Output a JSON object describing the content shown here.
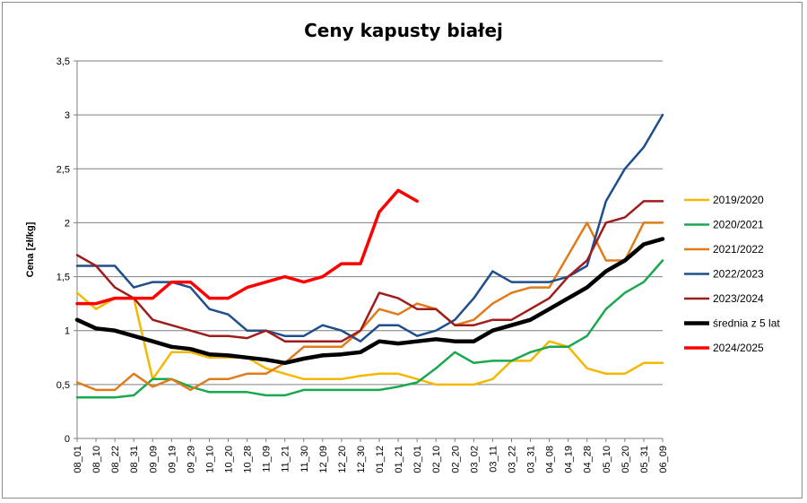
{
  "chart_data": {
    "type": "line",
    "title": "Ceny kapusty białej",
    "ylabel": "Cena [zł/kg]",
    "xlabel": "",
    "ylim": [
      0,
      3.5
    ],
    "y_ticks": [
      "0",
      "0,5",
      "1",
      "1,5",
      "2",
      "2,5",
      "3",
      "3,5"
    ],
    "categories": [
      "08_01",
      "08_10",
      "08_22",
      "08_31",
      "09_09",
      "09_19",
      "09_29",
      "10_10",
      "10_20",
      "10_28",
      "11_09",
      "11_21",
      "11_30",
      "12_09",
      "12_20",
      "12_30",
      "01_12",
      "01_21",
      "02_01",
      "02_10",
      "02_20",
      "03_02",
      "03_11",
      "03_22",
      "03_31",
      "04_08",
      "04_19",
      "04_28",
      "05_10",
      "05_20",
      "05_31",
      "06_09"
    ],
    "grid": "horizontal",
    "legend_position": "right",
    "series": [
      {
        "name": "2019/2020",
        "color": "#f5b800",
        "width": 2.5,
        "values": [
          1.35,
          1.2,
          1.3,
          1.3,
          0.55,
          0.8,
          0.8,
          0.75,
          0.75,
          0.75,
          0.65,
          0.6,
          0.55,
          0.55,
          0.55,
          0.58,
          0.6,
          0.6,
          0.55,
          0.5,
          0.5,
          0.5,
          0.55,
          0.72,
          0.72,
          0.9,
          0.85,
          0.65,
          0.6,
          0.6,
          0.7,
          0.7
        ]
      },
      {
        "name": "2020/2021",
        "color": "#1aa84f",
        "width": 2.5,
        "values": [
          0.38,
          0.38,
          0.38,
          0.4,
          0.55,
          0.55,
          0.48,
          0.43,
          0.43,
          0.43,
          0.4,
          0.4,
          0.45,
          0.45,
          0.45,
          0.45,
          0.45,
          0.48,
          0.52,
          0.65,
          0.8,
          0.7,
          0.72,
          0.72,
          0.8,
          0.85,
          0.85,
          0.95,
          1.2,
          1.35,
          1.45,
          1.65
        ]
      },
      {
        "name": "2021/2022",
        "color": "#e07b1a",
        "width": 2.5,
        "values": [
          0.52,
          0.45,
          0.45,
          0.6,
          0.48,
          0.55,
          0.45,
          0.55,
          0.55,
          0.6,
          0.6,
          0.7,
          0.85,
          0.85,
          0.85,
          1.0,
          1.2,
          1.15,
          1.25,
          1.2,
          1.05,
          1.1,
          1.25,
          1.35,
          1.4,
          1.4,
          1.7,
          2.0,
          1.65,
          1.65,
          2.0,
          2.0
        ]
      },
      {
        "name": "2022/2023",
        "color": "#1f4e8c",
        "width": 2.5,
        "values": [
          1.6,
          1.6,
          1.6,
          1.4,
          1.45,
          1.45,
          1.4,
          1.2,
          1.15,
          1.0,
          1.0,
          0.95,
          0.95,
          1.05,
          1.0,
          0.9,
          1.05,
          1.05,
          0.95,
          1.0,
          1.1,
          1.3,
          1.55,
          1.45,
          1.45,
          1.45,
          1.5,
          1.6,
          2.2,
          2.5,
          2.7,
          3.0
        ]
      },
      {
        "name": "2023/2024",
        "color": "#a01c1c",
        "width": 2.5,
        "values": [
          1.7,
          1.6,
          1.4,
          1.3,
          1.1,
          1.05,
          1.0,
          0.95,
          0.95,
          0.93,
          1.0,
          0.9,
          0.9,
          0.9,
          0.9,
          1.0,
          1.35,
          1.3,
          1.2,
          1.2,
          1.05,
          1.05,
          1.1,
          1.1,
          1.2,
          1.3,
          1.5,
          1.65,
          2.0,
          2.05,
          2.2,
          2.2
        ]
      },
      {
        "name": "średnia z 5 lat",
        "color": "#000000",
        "width": 4.5,
        "values": [
          1.1,
          1.02,
          1.0,
          0.95,
          0.9,
          0.85,
          0.83,
          0.78,
          0.77,
          0.75,
          0.73,
          0.7,
          0.74,
          0.77,
          0.78,
          0.8,
          0.9,
          0.88,
          0.9,
          0.92,
          0.9,
          0.9,
          1.0,
          1.05,
          1.1,
          1.2,
          1.3,
          1.4,
          1.55,
          1.65,
          1.8,
          1.85
        ]
      },
      {
        "name": "2024/2025",
        "color": "#ff0000",
        "width": 3.5,
        "values": [
          1.25,
          1.25,
          1.3,
          1.3,
          1.3,
          1.45,
          1.45,
          1.3,
          1.3,
          1.4,
          1.45,
          1.5,
          1.45,
          1.5,
          1.62,
          1.62,
          2.1,
          2.3,
          2.2,
          null,
          null,
          null,
          null,
          null,
          null,
          null,
          null,
          null,
          null,
          null,
          null,
          null
        ]
      }
    ]
  }
}
